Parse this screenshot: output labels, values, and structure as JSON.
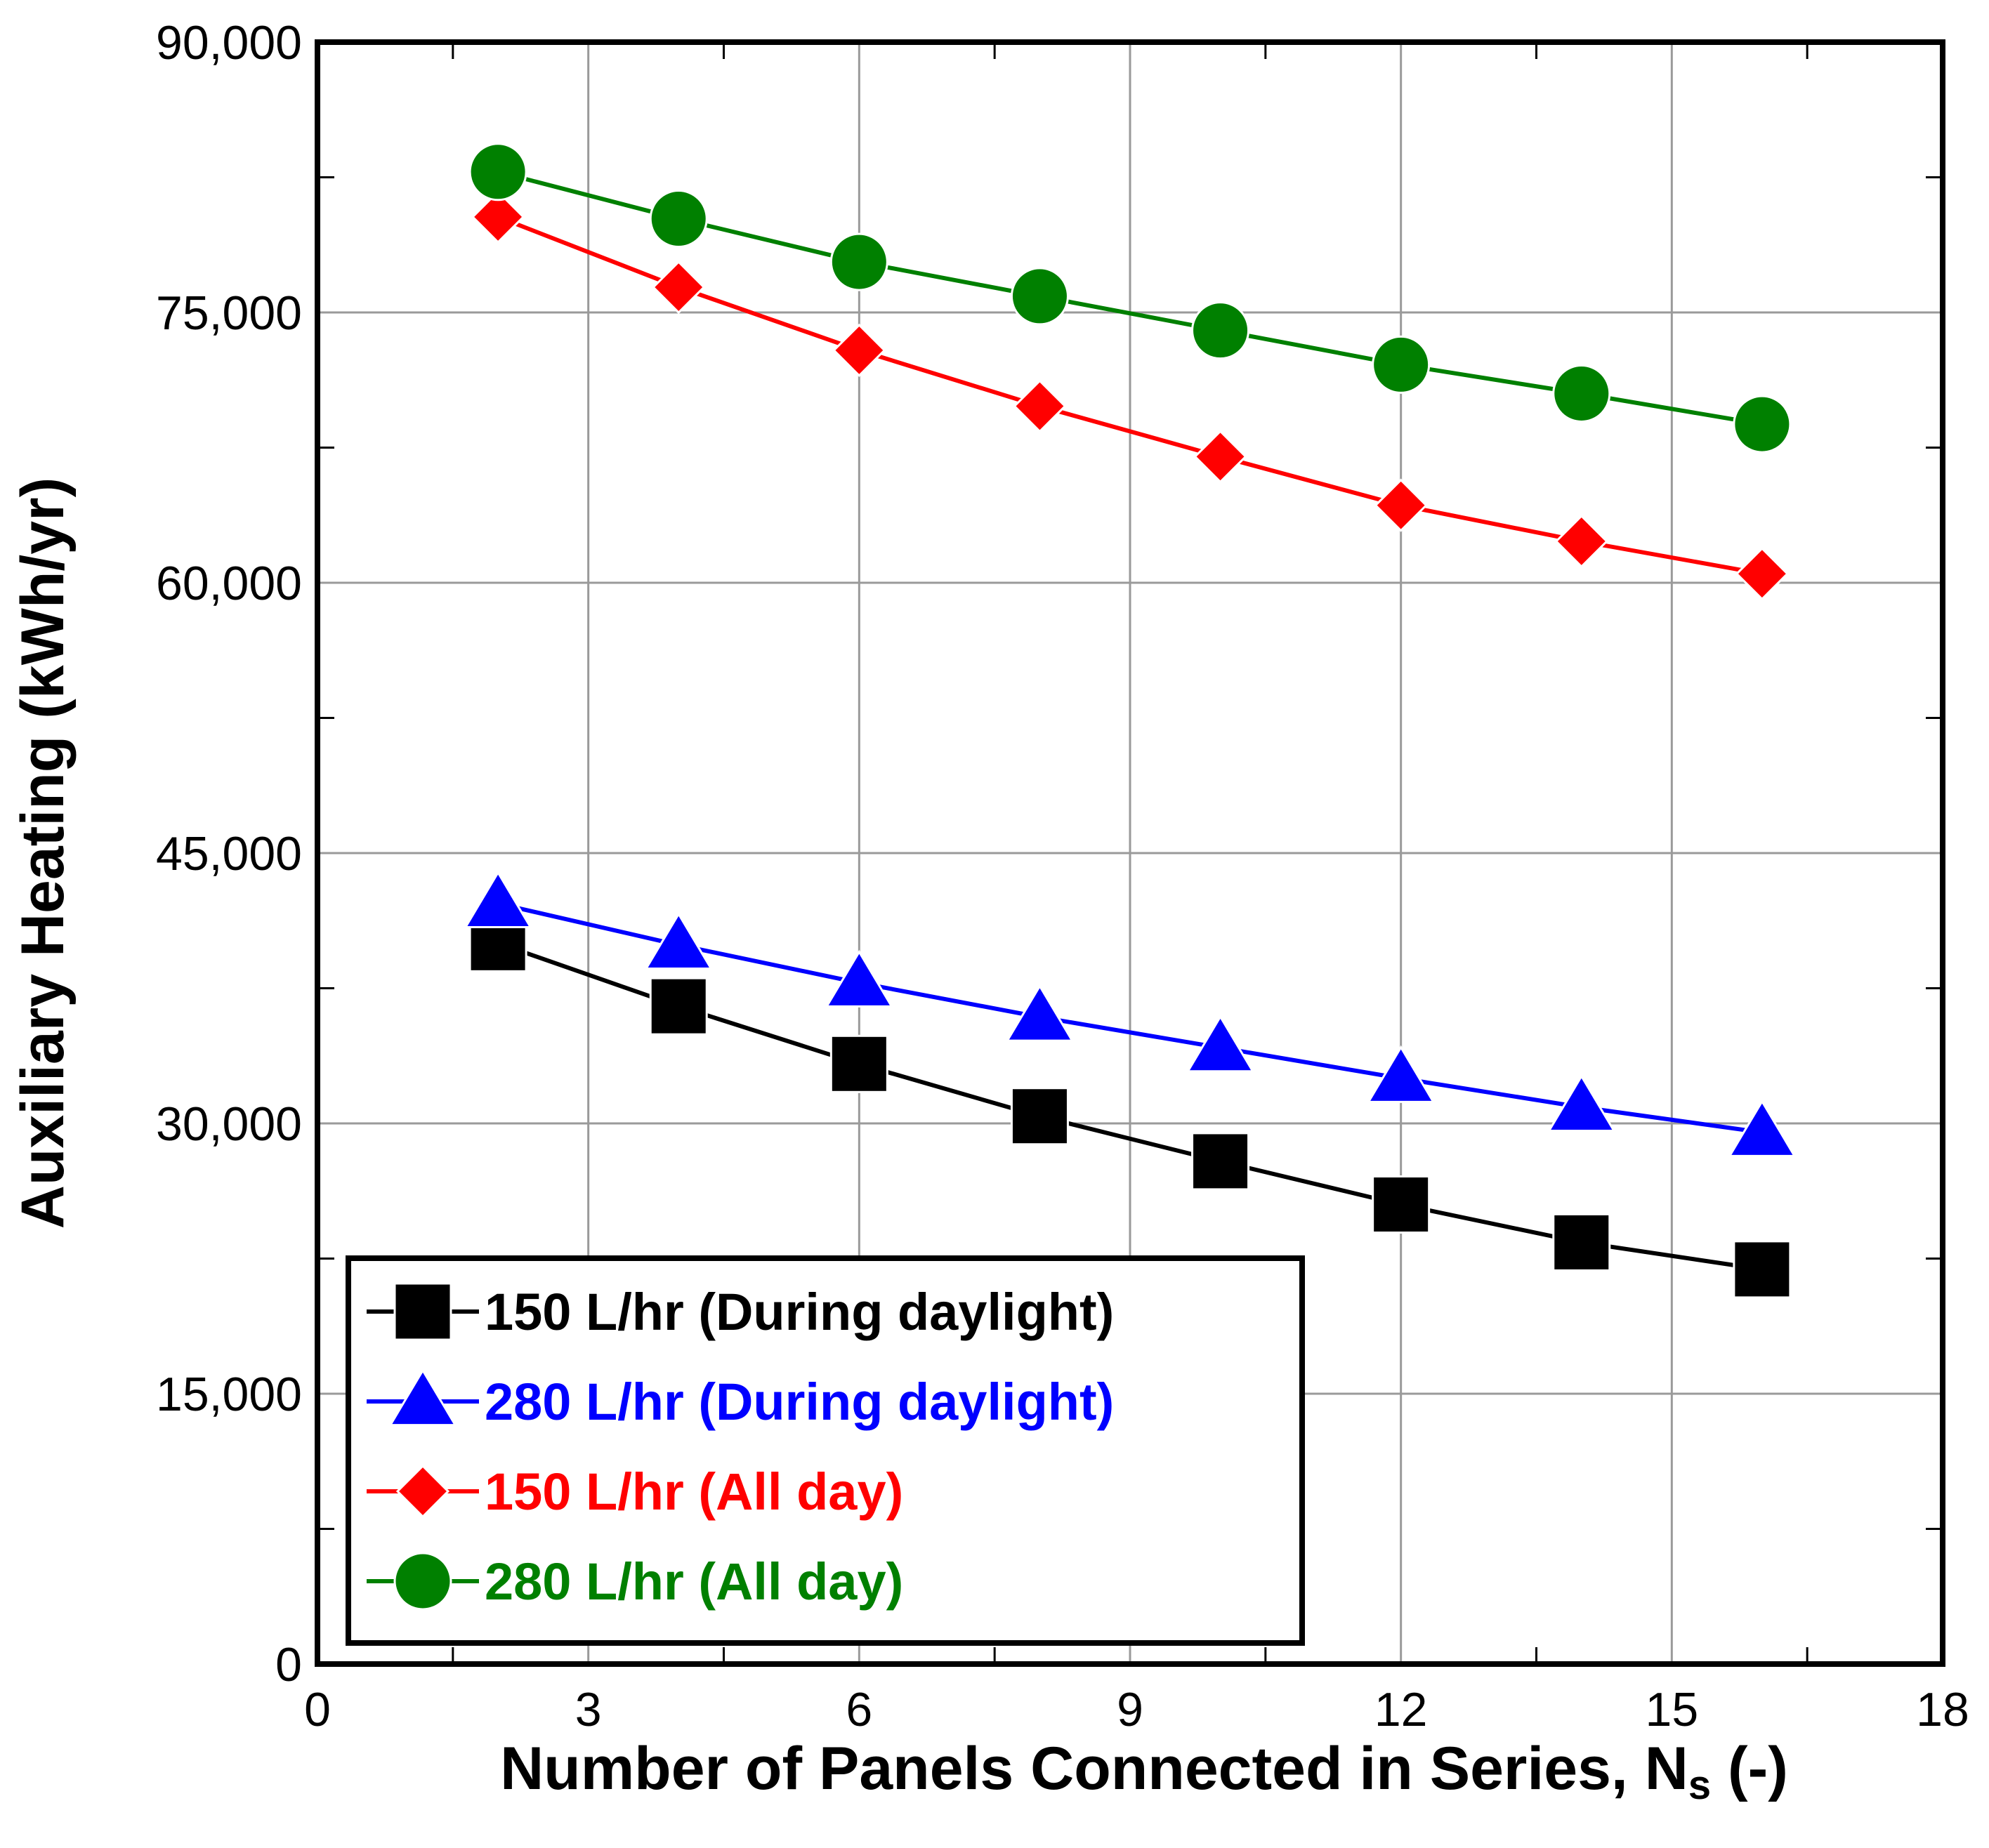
{
  "chart_data": {
    "type": "line",
    "title": "",
    "xlabel": "Number of Panels Connected in Series, N",
    "xlabel_subscript": "s",
    "xlabel_suffix": " (-)",
    "ylabel": "Auxiliary Heating (kWh/yr)",
    "xlim": [
      0,
      18
    ],
    "ylim": [
      0,
      90000
    ],
    "x_ticks": [
      0,
      3,
      6,
      9,
      12,
      15,
      18
    ],
    "x_tick_labels": [
      "0",
      "3",
      "6",
      "9",
      "12",
      "15",
      "18"
    ],
    "y_ticks": [
      0,
      15000,
      30000,
      45000,
      60000,
      75000,
      90000
    ],
    "y_tick_labels": [
      "0",
      "15,000",
      "30,000",
      "45,000",
      "60,000",
      "75,000",
      "90,000"
    ],
    "grid": true,
    "legend_position": "bottom-left",
    "x": [
      2,
      4,
      6,
      8,
      10,
      12,
      14,
      16
    ],
    "series": [
      {
        "name": "150 L/hr (During daylight)",
        "color": "#000000",
        "marker": "square",
        "values": [
          40000,
          36500,
          33300,
          30400,
          27900,
          25500,
          23400,
          21900
        ]
      },
      {
        "name": "280 L/hr (During daylight)",
        "color": "#0000ff",
        "marker": "triangle",
        "values": [
          42200,
          39900,
          37800,
          35900,
          34200,
          32500,
          30900,
          29500
        ]
      },
      {
        "name": "150 L/hr (All day)",
        "color": "#ff0000",
        "marker": "diamond",
        "values": [
          80300,
          76400,
          72900,
          69800,
          67000,
          64300,
          62300,
          60500
        ]
      },
      {
        "name": "280 L/hr (All day)",
        "color": "#008000",
        "marker": "circle",
        "values": [
          82800,
          80200,
          77800,
          75900,
          74000,
          72100,
          70500,
          68800
        ]
      }
    ]
  }
}
